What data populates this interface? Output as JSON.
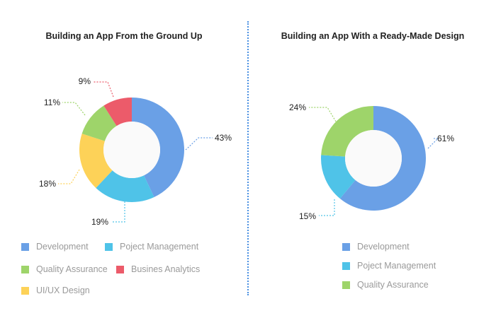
{
  "chart_data": [
    {
      "type": "pie",
      "title": "Building an App From the Ground Up",
      "categories": [
        "Development",
        "Poject Management",
        "UI/UX Design",
        "Quality Assurance",
        "Busines Analytics"
      ],
      "values": [
        43,
        19,
        18,
        11,
        9
      ],
      "value_labels": [
        "43%",
        "19%",
        "18%",
        "11%",
        "9%"
      ],
      "colors": [
        "#6aa0e6",
        "#4fc3e8",
        "#fdd258",
        "#9ed46a",
        "#ec5b6a"
      ],
      "legend": [
        {
          "label": "Development",
          "color": "#6aa0e6"
        },
        {
          "label": "Poject Management",
          "color": "#4fc3e8"
        },
        {
          "label": "Quality Assurance",
          "color": "#9ed46a"
        },
        {
          "label": "Busines Analytics",
          "color": "#ec5b6a"
        },
        {
          "label": "UI/UX Design",
          "color": "#fdd258"
        }
      ]
    },
    {
      "type": "pie",
      "title": "Building an App With a Ready-Made Design",
      "categories": [
        "Development",
        "Poject Management",
        "Quality Assurance"
      ],
      "values": [
        61,
        15,
        24
      ],
      "value_labels": [
        "61%",
        "15%",
        "24%"
      ],
      "colors": [
        "#6aa0e6",
        "#4fc3e8",
        "#9ed46a"
      ],
      "legend": [
        {
          "label": "Development",
          "color": "#6aa0e6"
        },
        {
          "label": "Poject Management",
          "color": "#4fc3e8"
        },
        {
          "label": "Quality Assurance",
          "color": "#9ed46a"
        }
      ]
    }
  ]
}
